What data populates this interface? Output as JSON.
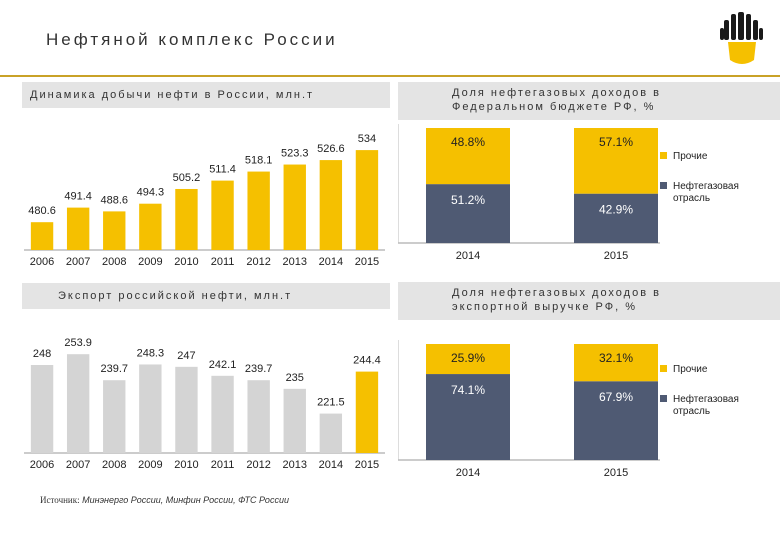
{
  "header": {
    "title": "Нефтяной комплекс России"
  },
  "colors": {
    "gold": "#f5c000",
    "grey": "#d4d4d4",
    "navy": "#4f5a73",
    "band": "#e4e4e4",
    "accent": "#c9a227"
  },
  "chart_data": [
    {
      "type": "bar",
      "title": "Динамика добычи нефти в России, млн.т",
      "categories": [
        "2006",
        "2007",
        "2008",
        "2009",
        "2010",
        "2011",
        "2012",
        "2013",
        "2014",
        "2015"
      ],
      "values": [
        480.6,
        491.4,
        488.6,
        494.3,
        505.2,
        511.4,
        518.1,
        523.3,
        526.6,
        534
      ],
      "value_labels": [
        "480.6",
        "491.4",
        "488.6",
        "494.3",
        "505.2",
        "511.4",
        "518.1",
        "523.3",
        "526.6",
        "534"
      ],
      "ylim": [
        460,
        540
      ],
      "color": "#f5c000"
    },
    {
      "type": "bar",
      "title": "Экспорт российской нефти, млн.т",
      "categories": [
        "2006",
        "2007",
        "2008",
        "2009",
        "2010",
        "2011",
        "2012",
        "2013",
        "2014",
        "2015"
      ],
      "values": [
        248,
        253.9,
        239.7,
        248.3,
        247,
        242.1,
        239.7,
        235,
        221.5,
        244.4
      ],
      "value_labels": [
        "248",
        "253.9",
        "239.7",
        "248.3",
        "247",
        "242.1",
        "239.7",
        "235",
        "221.5",
        "244.4"
      ],
      "ylim": [
        200,
        260
      ],
      "color": "#d4d4d4",
      "highlight_color": "#f5c000"
    },
    {
      "type": "bar",
      "stacked": true,
      "title": "Доля нефтегазовых доходов в Федеральном бюджете РФ, %",
      "categories": [
        "2014",
        "2015"
      ],
      "series": [
        {
          "name": "Нефтегазовая отрасль",
          "values": [
            51.2,
            42.9
          ],
          "labels": [
            "51.2%",
            "42.9%"
          ],
          "color": "#4f5a73"
        },
        {
          "name": "Прочие",
          "values": [
            48.8,
            57.1
          ],
          "labels": [
            "48.8%",
            "57.1%"
          ],
          "color": "#f5c000"
        }
      ],
      "legend": [
        "Прочие",
        "Нефтегазовая отрасль"
      ],
      "ylim": [
        0,
        100
      ]
    },
    {
      "type": "bar",
      "stacked": true,
      "title": "Доля нефтегазовых доходов в экспортной выручке РФ, %",
      "categories": [
        "2014",
        "2015"
      ],
      "series": [
        {
          "name": "Нефтегазовая отрасль",
          "values": [
            74.1,
            67.9
          ],
          "labels": [
            "74.1%",
            "67.9%"
          ],
          "color": "#4f5a73"
        },
        {
          "name": "Прочие",
          "values": [
            25.9,
            32.1
          ],
          "labels": [
            "25.9%",
            "32.1%"
          ],
          "color": "#f5c000"
        }
      ],
      "legend": [
        "Прочие",
        "Нефтегазовая отрасль"
      ],
      "ylim": [
        0,
        100
      ]
    }
  ],
  "source": {
    "label": "Источник:",
    "text": "Минэнерго России, Минфин России, ФТС России"
  }
}
